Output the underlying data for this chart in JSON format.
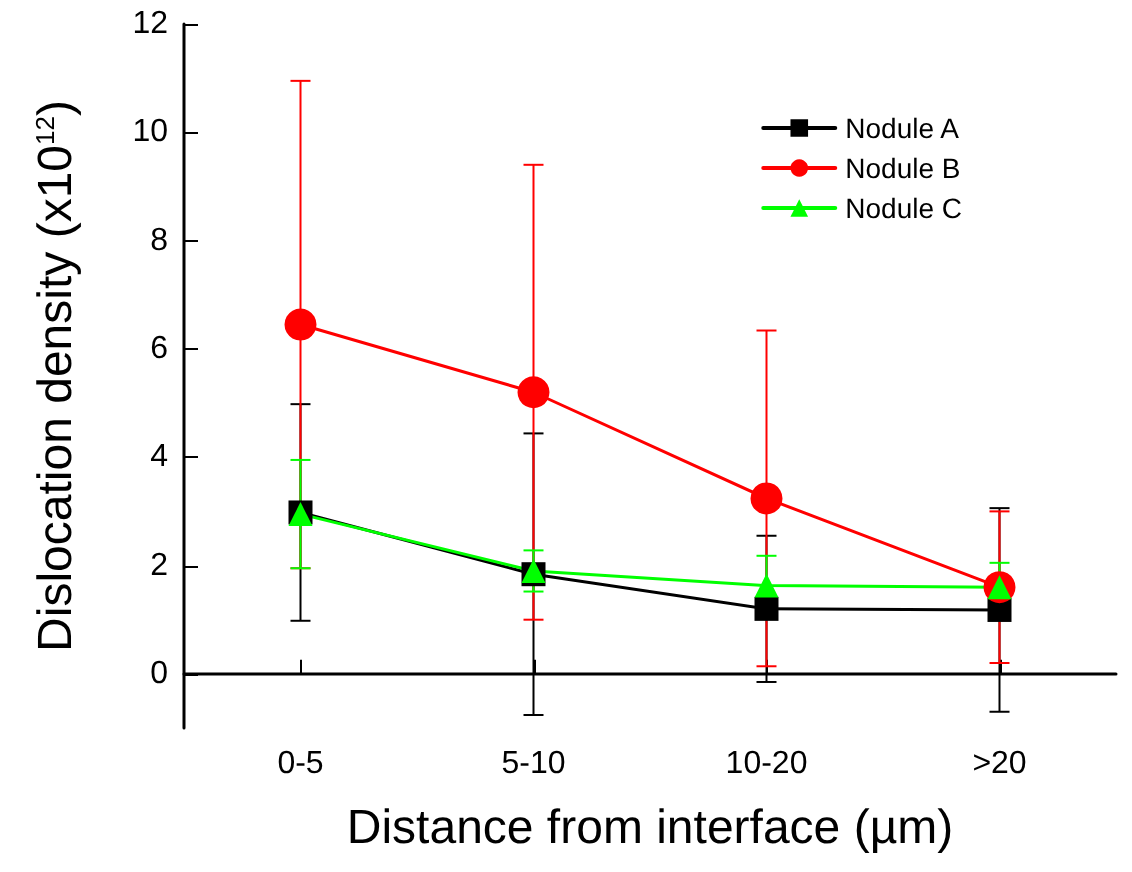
{
  "chart_data": {
    "type": "line",
    "xlabel": "Distance from interface (µm)",
    "ylabel": "Dislocation density (x10$^{12}$)",
    "categories": [
      "0-5",
      "5-10",
      "10-20",
      ">20"
    ],
    "ylim": [
      -1,
      12
    ],
    "yticks": [
      0,
      2,
      4,
      6,
      8,
      10,
      12
    ],
    "grid": false,
    "legend": "top right",
    "line_style": "solid",
    "series": [
      {
        "name": "Nodule A",
        "color": "#000000",
        "marker": "square",
        "values": [
          2.98,
          1.84,
          1.2,
          1.18
        ],
        "errors": [
          2,
          2.6,
          1.35,
          1.88
        ]
      },
      {
        "name": "Nodule B",
        "color": "#ff0000",
        "marker": "circle",
        "values": [
          6.45,
          5.2,
          3.24,
          1.6
        ],
        "errors": [
          4.5,
          4.2,
          3.1,
          1.4
        ]
      },
      {
        "name": "Nodule C",
        "color": "#00ff00",
        "marker": "triangle",
        "values": [
          2.95,
          1.9,
          1.63,
          1.6
        ],
        "errors": [
          1,
          0.38,
          0.55,
          0.45
        ]
      }
    ]
  }
}
